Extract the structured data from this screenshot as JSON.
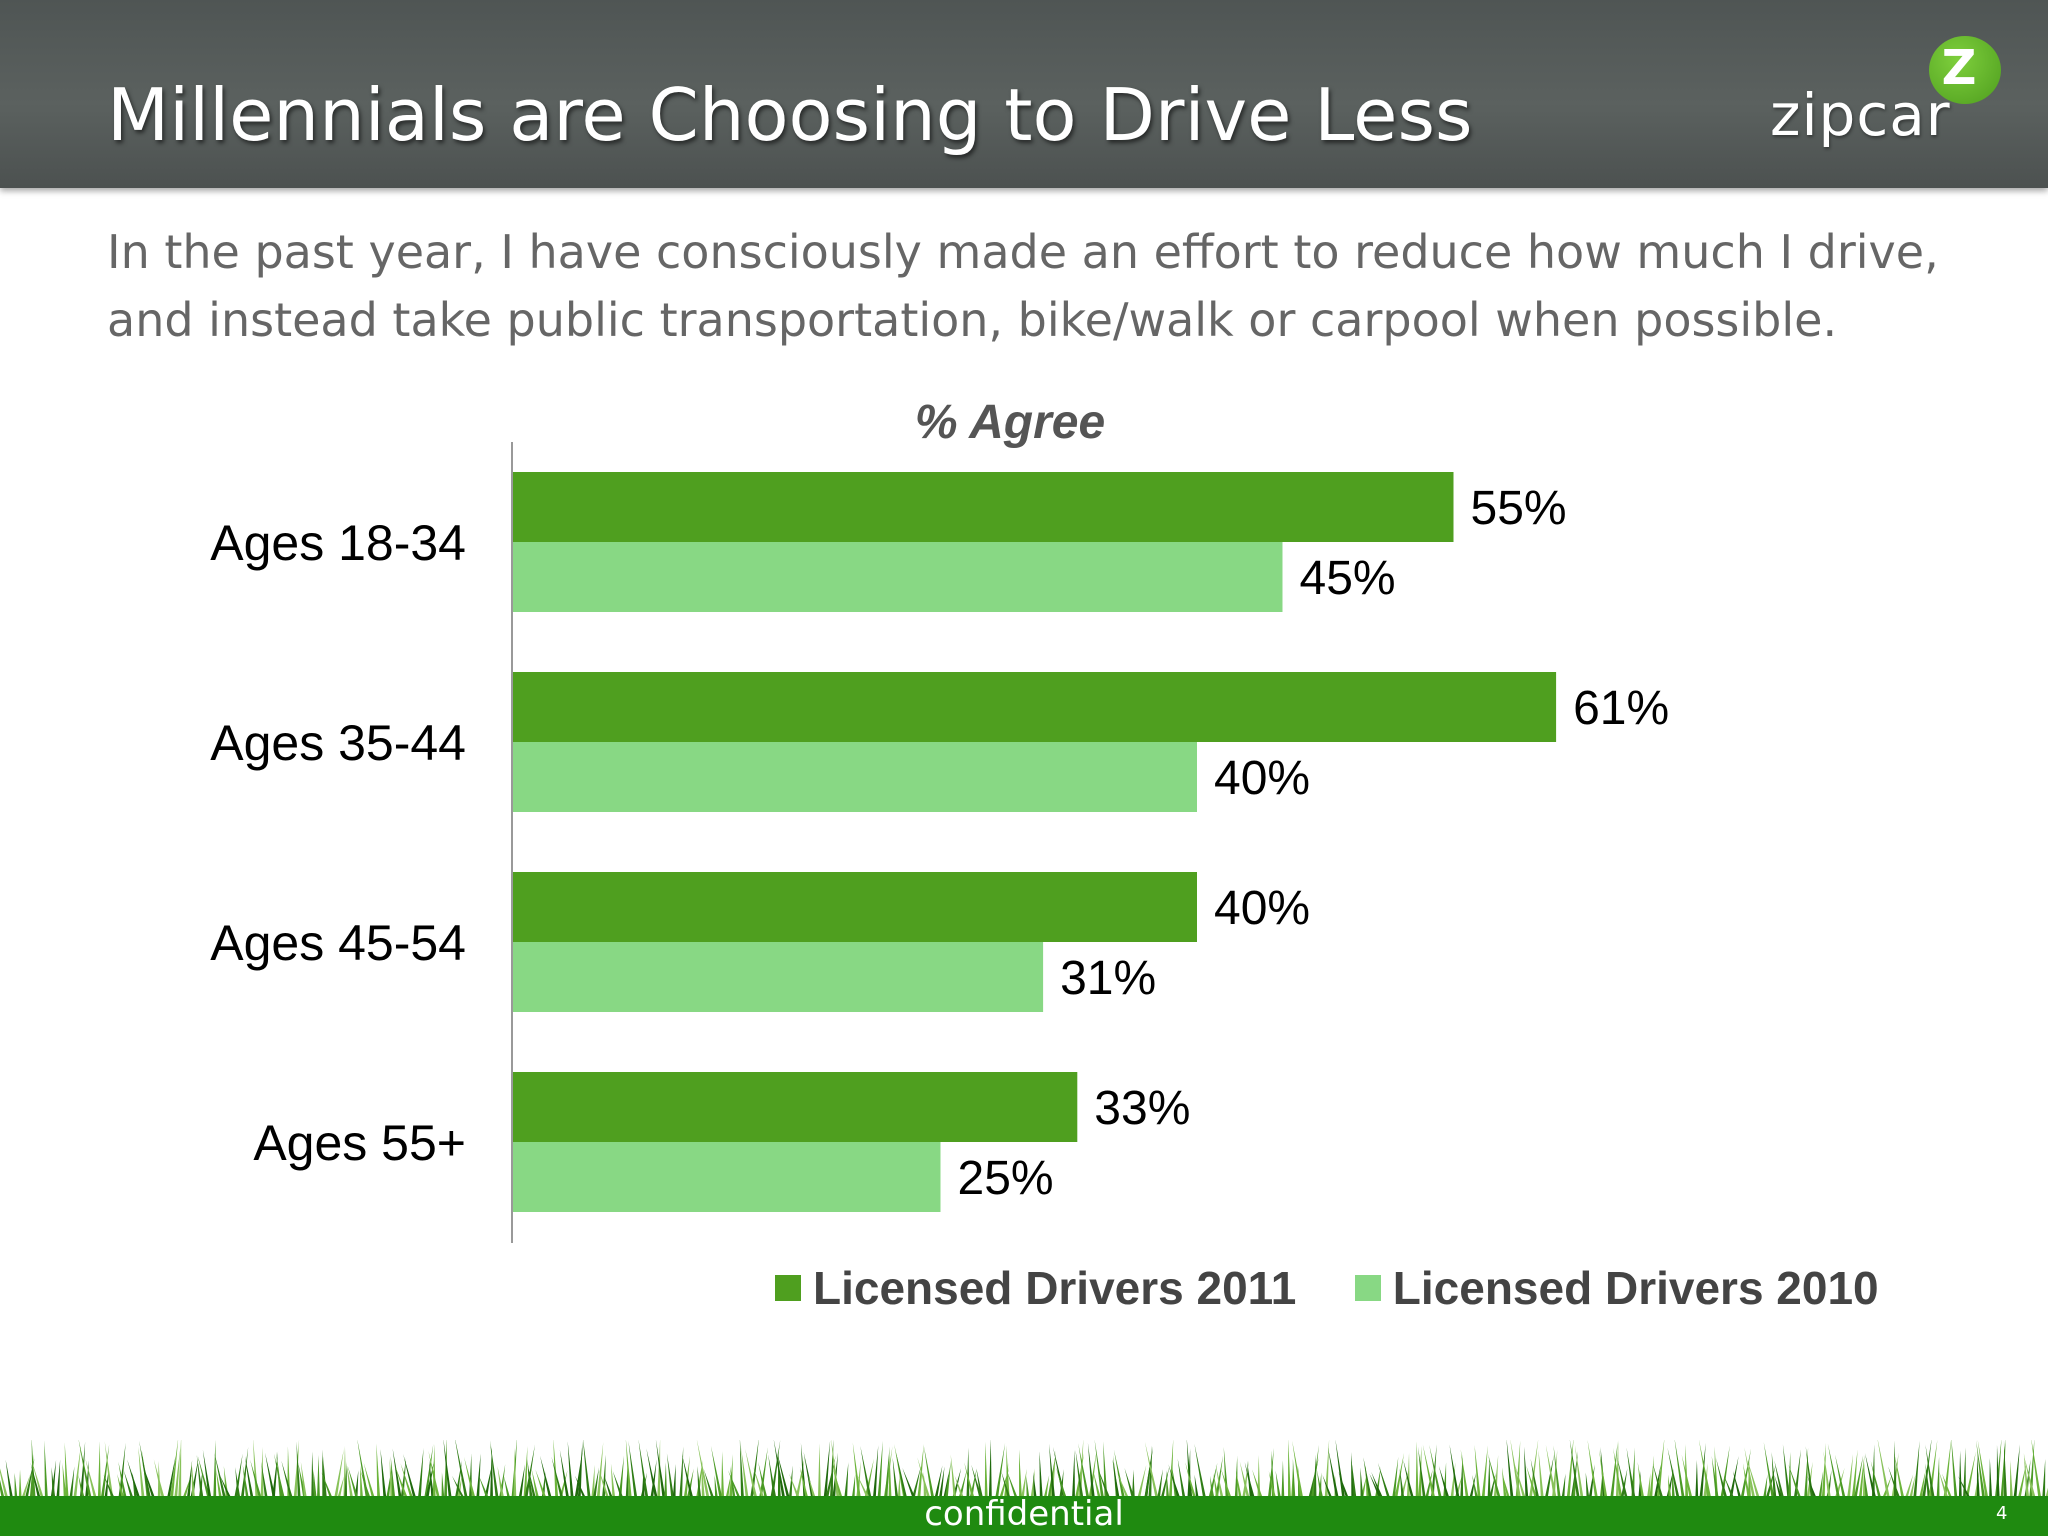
{
  "slide": {
    "title": "Millennials are Choosing to Drive Less",
    "subtitle": "In the past year, I have consciously made an effort to reduce how much I drive, and instead take public transportation, bike/walk or carpool when possible.",
    "logo_text": "zipcar",
    "logo_badge": "Z",
    "footer_text": "confidential",
    "page_number": "4"
  },
  "colors": {
    "header_bg": "#55595a",
    "series_2011": "#4f9f1f",
    "series_2010": "#88d884",
    "footer_green": "#1f8a10"
  },
  "icons": {
    "logo": "zipcar-logo-icon",
    "grass": "grass-decoration-icon"
  },
  "chart_data": {
    "type": "bar",
    "orientation": "horizontal",
    "title": "% Agree",
    "categories": [
      "Ages 18-34",
      "Ages 35-44",
      "Ages 45-54",
      "Ages 55+"
    ],
    "series": [
      {
        "name": "Licensed Drivers 2011",
        "values": [
          55,
          61,
          40,
          33
        ],
        "labels": [
          "55%",
          "61%",
          "40%",
          "33%"
        ]
      },
      {
        "name": "Licensed Drivers 2010",
        "values": [
          45,
          40,
          31,
          25
        ],
        "labels": [
          "45%",
          "40%",
          "31%",
          "25%"
        ]
      }
    ],
    "xlim": [
      0,
      100
    ],
    "grid": false,
    "legend": "bottom",
    "unit": "%"
  }
}
